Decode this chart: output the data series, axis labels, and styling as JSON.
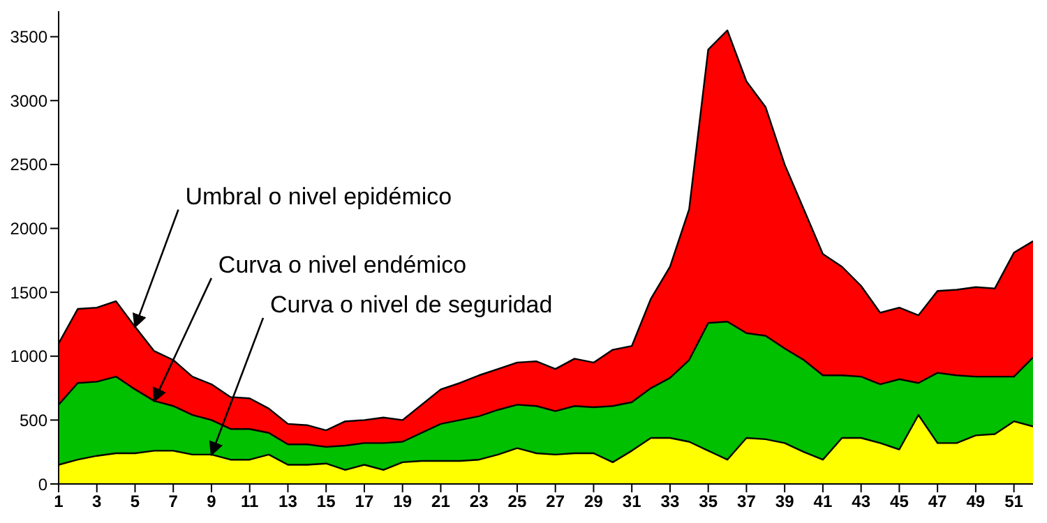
{
  "chart_data": {
    "type": "area",
    "x": [
      1,
      2,
      3,
      4,
      5,
      6,
      7,
      8,
      9,
      10,
      11,
      12,
      13,
      14,
      15,
      16,
      17,
      18,
      19,
      20,
      21,
      22,
      23,
      24,
      25,
      26,
      27,
      28,
      29,
      30,
      31,
      32,
      33,
      34,
      35,
      36,
      37,
      38,
      39,
      40,
      41,
      42,
      43,
      44,
      45,
      46,
      47,
      48,
      49,
      50,
      51,
      52
    ],
    "series": [
      {
        "color": "#ff0000",
        "values": [
          1100,
          1370,
          1380,
          1430,
          1230,
          1040,
          970,
          840,
          780,
          680,
          670,
          590,
          470,
          460,
          420,
          490,
          500,
          520,
          500,
          620,
          740,
          790,
          850,
          900,
          950,
          960,
          900,
          980,
          950,
          1050,
          1080,
          1450,
          1700,
          2150,
          3400,
          3550,
          3150,
          2950,
          2500,
          2150,
          1800,
          1700,
          1550,
          1340,
          1380,
          1320,
          1510,
          1520,
          1540,
          1530,
          1810,
          1900
        ]
      },
      {
        "color": "#00c000",
        "values": [
          620,
          790,
          800,
          840,
          740,
          650,
          610,
          540,
          500,
          430,
          430,
          400,
          310,
          310,
          290,
          300,
          320,
          320,
          330,
          400,
          470,
          500,
          530,
          580,
          620,
          610,
          570,
          610,
          600,
          610,
          640,
          750,
          830,
          970,
          1260,
          1270,
          1180,
          1160,
          1060,
          970,
          850,
          850,
          840,
          780,
          820,
          790,
          870,
          850,
          840,
          840,
          840,
          990
        ]
      },
      {
        "color": "#ffff00",
        "values": [
          150,
          190,
          220,
          240,
          240,
          260,
          260,
          230,
          230,
          190,
          190,
          230,
          150,
          150,
          160,
          110,
          150,
          110,
          170,
          180,
          180,
          180,
          190,
          230,
          280,
          240,
          230,
          240,
          240,
          170,
          260,
          360,
          360,
          330,
          260,
          190,
          360,
          350,
          320,
          250,
          190,
          360,
          360,
          320,
          270,
          540,
          320,
          320,
          380,
          390,
          490,
          450
        ]
      }
    ],
    "xlim": [
      1,
      52
    ],
    "xticks": [
      1,
      3,
      5,
      7,
      9,
      11,
      13,
      15,
      17,
      19,
      21,
      23,
      25,
      27,
      29,
      31,
      33,
      35,
      37,
      39,
      41,
      43,
      45,
      47,
      49,
      51
    ],
    "ylim": [
      0,
      3700
    ],
    "yticks": [
      0,
      500,
      1000,
      1500,
      2000,
      2500,
      3000,
      3500
    ],
    "annotations": [
      {
        "text": "Umbral o nivel epidémico",
        "x": 5,
        "y": 1230
      },
      {
        "text": "Curva o nivel endémico",
        "x": 6,
        "y": 650
      },
      {
        "text": "Curva o nivel de seguridad",
        "x": 9,
        "y": 230
      }
    ]
  }
}
